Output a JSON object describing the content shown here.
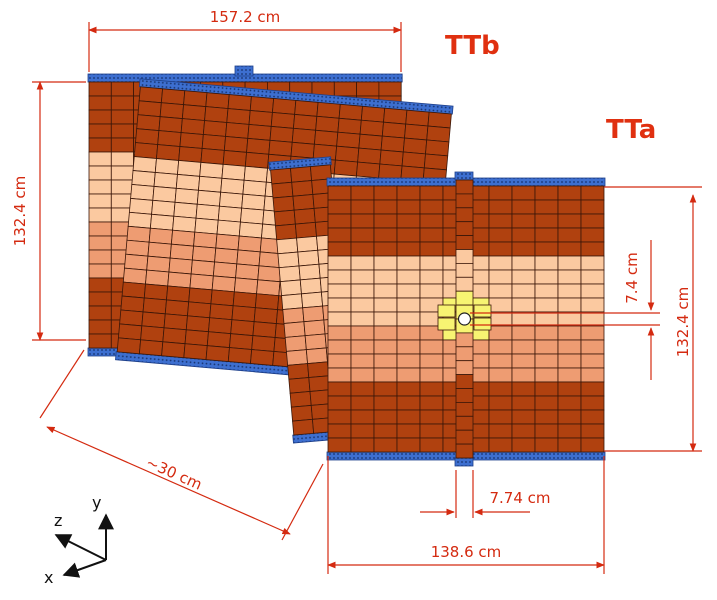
{
  "labels": {
    "ttb": "TTb",
    "tta": "TTa",
    "width_ttb": "157.2 cm",
    "height_ttb": "132.4 cm",
    "height_tta": "132.4 cm",
    "inner_gap": "7.4 cm",
    "beam_strip": "7.74 cm",
    "width_tta": "138.6 cm",
    "station_gap": "~30 cm",
    "axis_x": "x",
    "axis_y": "y",
    "axis_z": "z"
  },
  "colors": {
    "dark": "#b0410f",
    "medium": "#ee9c72",
    "light": "#fbc9a0",
    "yellow": "#f7f472",
    "brown_line": "#3a1608",
    "edge_blue": "#3d6fd0",
    "dim_red": "#d42a10"
  }
}
